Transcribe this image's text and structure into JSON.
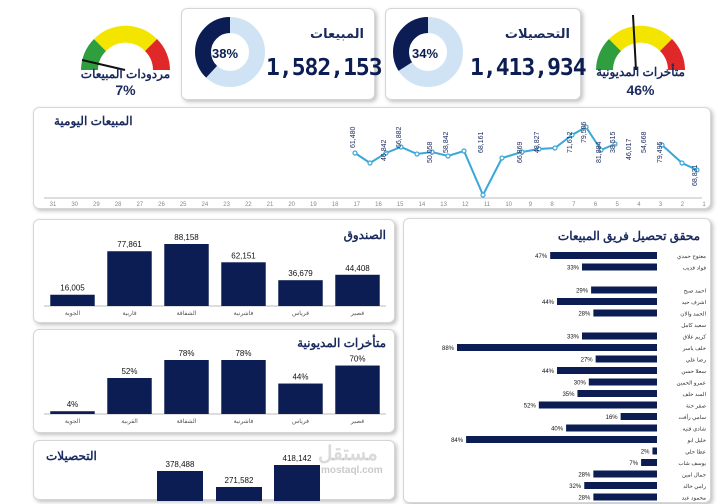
{
  "gauges": {
    "sales_returns": {
      "label": "مردودات المبيعات",
      "percent": "7%",
      "value": 0.07
    },
    "overdue_debt": {
      "label": "متأخرات المديونية",
      "percent": "46%",
      "value": 0.46
    }
  },
  "kpis": {
    "sales": {
      "title": "المبيعات",
      "value": "1,582,153",
      "donut_label": "38%",
      "donut_value": 0.38
    },
    "collections": {
      "title": "التحصيلات",
      "value": "1,413,934",
      "donut_label": "34%",
      "donut_value": 0.34
    }
  },
  "daily_sales": {
    "title": "المبيعات اليومية",
    "x_ticks": [
      "31",
      "30",
      "29",
      "28",
      "27",
      "26",
      "25",
      "24",
      "23",
      "22",
      "21",
      "20",
      "19",
      "18",
      "17",
      "16",
      "15",
      "14",
      "13",
      "12",
      "11",
      "10",
      "9",
      "8",
      "7",
      "6",
      "5",
      "4",
      "3",
      "2",
      "1"
    ],
    "labels": [
      "61,480",
      "46,842",
      "66,882",
      "50,058",
      "58,842",
      "68,161",
      "66,869",
      "48,827",
      "71,612",
      "79,506",
      "81,884",
      "54,668",
      "79,495",
      "68,831",
      "46,017",
      "38,515"
    ]
  },
  "cashbox": {
    "title": "الصندوق",
    "categories": [
      "الجوية",
      "قاربية",
      "الشفاقة",
      "فاشرنية",
      "قرياس",
      "قصير"
    ],
    "labels": [
      "16,005",
      "77,861",
      "88,158",
      "62,151",
      "36,679",
      "44,408"
    ],
    "values": [
      16005,
      77861,
      88158,
      62151,
      36679,
      44408
    ]
  },
  "overdue": {
    "title": "متأخرات المديونية",
    "categories": [
      "الجوية",
      "القربية",
      "الشفاقة",
      "فاشرنية",
      "قرياس",
      "قصير"
    ],
    "labels": [
      "4%",
      "52%",
      "78%",
      "78%",
      "44%",
      "70%"
    ],
    "values": [
      4,
      52,
      78,
      78,
      44,
      70
    ]
  },
  "collections_chart": {
    "title": "التحصيلات",
    "labels": [
      "378,488",
      "271,582",
      "418,142"
    ],
    "values": [
      378488,
      271582,
      418142
    ]
  },
  "team": {
    "title": "محقق تحصيل فريق المبيعات",
    "rows": [
      {
        "name": "معتوح حمدي",
        "pct": "47%",
        "value": 47
      },
      {
        "name": "فواد قديب",
        "pct": "33%",
        "value": 33
      },
      {
        "name": "",
        "pct": "",
        "value": 0
      },
      {
        "name": "احمد صبح",
        "pct": "29%",
        "value": 29
      },
      {
        "name": "اشرف حيد",
        "pct": "44%",
        "value": 44
      },
      {
        "name": "الحمد والان",
        "pct": "28%",
        "value": 28
      },
      {
        "name": "سعيد كامل",
        "pct": "",
        "value": 0
      },
      {
        "name": "كريم علاق",
        "pct": "33%",
        "value": 33
      },
      {
        "name": "خلف ياسر",
        "pct": "88%",
        "value": 88
      },
      {
        "name": "رضا علي",
        "pct": "27%",
        "value": 27
      },
      {
        "name": "سعلا حسن",
        "pct": "44%",
        "value": 44
      },
      {
        "name": "عمرو الحمين",
        "pct": "30%",
        "value": 30
      },
      {
        "name": "السد خلف",
        "pct": "35%",
        "value": 35
      },
      {
        "name": "صقر حنة",
        "pct": "52%",
        "value": 52
      },
      {
        "name": "سامي رأفت",
        "pct": "16%",
        "value": 16
      },
      {
        "name": "شادي قنيه",
        "pct": "40%",
        "value": 40
      },
      {
        "name": "خليل ابو",
        "pct": "84%",
        "value": 84
      },
      {
        "name": "عطا حلي",
        "pct": "2%",
        "value": 2
      },
      {
        "name": "يوسف شاب",
        "pct": "7%",
        "value": 7
      },
      {
        "name": "جمال امين",
        "pct": "28%",
        "value": 28
      },
      {
        "name": "رامي خالد",
        "pct": "32%",
        "value": 32
      },
      {
        "name": "محمود عبد",
        "pct": "28%",
        "value": 28
      }
    ]
  },
  "watermark": {
    "ar": "مستقل",
    "en": "mostaql.com"
  },
  "colors": {
    "navy": "#0b1d52",
    "donut_bg": "#cfe3f5",
    "line": "#3aa7d9",
    "gauge_green": "#2e9e3e",
    "gauge_yellow": "#f3e500",
    "gauge_red": "#e02828"
  }
}
